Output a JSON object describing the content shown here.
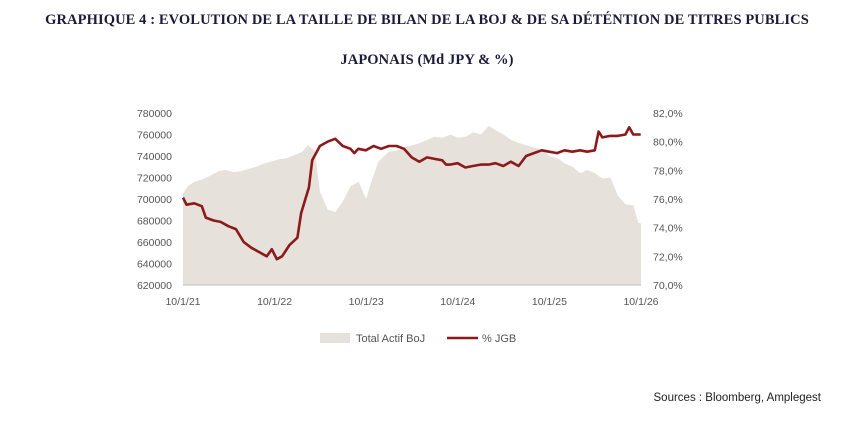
{
  "header": {
    "title_line1": "GRAPHIQUE 4 : EVOLUTION DE LA TAILLE DE BILAN DE LA BOJ & DE SA DÉTÉNTION DE TITRES PUBLICS",
    "title_line2": "JAPONAIS (Md JPY & %)"
  },
  "footer": {
    "sources": "Sources : Bloomberg, Amplegest"
  },
  "colors": {
    "area": "#e6e1db",
    "line": "#8b1a1a",
    "axis_text": "#555555",
    "axis_line": "#bdbdbd"
  },
  "chart_data": {
    "type": "area",
    "x_tick_labels": [
      "10/1/21",
      "10/1/22",
      "10/1/23",
      "10/1/24",
      "10/1/25",
      "10/1/26"
    ],
    "x_range": [
      "2021-10-01",
      "2026-10-01"
    ],
    "y_left": {
      "ylim": [
        620000,
        780000
      ],
      "tick_labels": [
        "620000",
        "640000",
        "660000",
        "680000",
        "700000",
        "720000",
        "740000",
        "760000",
        "780000"
      ]
    },
    "y_right": {
      "ylim": [
        70.0,
        82.0
      ],
      "tick_labels": [
        "70,0%",
        "72,0%",
        "74,0%",
        "76,0%",
        "78,0%",
        "80,0%",
        "82,0%"
      ]
    },
    "legend": {
      "placement": "bottom",
      "series_labels": [
        "Total Actif BoJ",
        "% JGB"
      ]
    },
    "series": [
      {
        "name": "Total Actif BoJ",
        "axis": "left",
        "type": "area",
        "points": [
          [
            "2021-10-01",
            705000
          ],
          [
            "2021-10-20",
            712000
          ],
          [
            "2021-11-15",
            716000
          ],
          [
            "2021-12-15",
            718000
          ],
          [
            "2022-01-20",
            722000
          ],
          [
            "2022-02-20",
            726000
          ],
          [
            "2022-03-20",
            727000
          ],
          [
            "2022-04-20",
            725000
          ],
          [
            "2022-05-20",
            726000
          ],
          [
            "2022-06-20",
            728000
          ],
          [
            "2022-07-20",
            730000
          ],
          [
            "2022-08-20",
            733000
          ],
          [
            "2022-09-20",
            735000
          ],
          [
            "2022-10-20",
            737000
          ],
          [
            "2022-11-20",
            738000
          ],
          [
            "2022-12-20",
            741000
          ],
          [
            "2023-01-20",
            744000
          ],
          [
            "2023-02-10",
            750000
          ],
          [
            "2023-03-10",
            745000
          ],
          [
            "2023-03-31",
            707000
          ],
          [
            "2023-05-01",
            690000
          ],
          [
            "2023-06-01",
            688000
          ],
          [
            "2023-07-01",
            698000
          ],
          [
            "2023-08-01",
            712000
          ],
          [
            "2023-09-01",
            716000
          ],
          [
            "2023-10-01",
            700000
          ],
          [
            "2023-10-20",
            715000
          ],
          [
            "2023-11-20",
            735000
          ],
          [
            "2023-12-31",
            744000
          ],
          [
            "2024-02-01",
            745000
          ],
          [
            "2024-03-01",
            748000
          ],
          [
            "2024-04-01",
            750000
          ],
          [
            "2024-05-01",
            752000
          ],
          [
            "2024-06-01",
            755000
          ],
          [
            "2024-07-01",
            758000
          ],
          [
            "2024-08-01",
            757000
          ],
          [
            "2024-09-01",
            760000
          ],
          [
            "2024-10-01",
            757000
          ],
          [
            "2024-11-01",
            758000
          ],
          [
            "2024-12-01",
            762000
          ],
          [
            "2025-01-01",
            760000
          ],
          [
            "2025-02-01",
            768000
          ],
          [
            "2025-03-01",
            764000
          ],
          [
            "2025-04-01",
            760000
          ],
          [
            "2025-05-01",
            755000
          ],
          [
            "2025-06-01",
            752000
          ],
          [
            "2025-07-01",
            750000
          ],
          [
            "2025-08-01",
            748000
          ],
          [
            "2025-09-01",
            746000
          ],
          [
            "2025-10-01",
            740000
          ],
          [
            "2025-11-01",
            738000
          ],
          [
            "2025-12-01",
            733000
          ],
          [
            "2026-01-01",
            730000
          ],
          [
            "2026-02-01",
            724000
          ],
          [
            "2026-03-01",
            727000
          ],
          [
            "2026-04-01",
            724000
          ],
          [
            "2026-05-01",
            719000
          ],
          [
            "2026-06-01",
            720000
          ],
          [
            "2026-07-01",
            703000
          ],
          [
            "2026-08-01",
            695000
          ],
          [
            "2026-09-01",
            694000
          ],
          [
            "2026-09-20",
            678000
          ],
          [
            "2026-10-01",
            677000
          ]
        ]
      },
      {
        "name": "% JGB",
        "axis": "right",
        "type": "line",
        "points": [
          [
            "2021-10-01",
            76.1
          ],
          [
            "2021-10-15",
            75.6
          ],
          [
            "2021-11-15",
            75.7
          ],
          [
            "2021-12-15",
            75.5
          ],
          [
            "2021-12-31",
            74.7
          ],
          [
            "2022-01-31",
            74.5
          ],
          [
            "2022-02-28",
            74.4
          ],
          [
            "2022-03-31",
            74.1
          ],
          [
            "2022-04-30",
            73.9
          ],
          [
            "2022-05-31",
            73.0
          ],
          [
            "2022-06-30",
            72.6
          ],
          [
            "2022-07-31",
            72.3
          ],
          [
            "2022-08-31",
            72.0
          ],
          [
            "2022-09-20",
            72.5
          ],
          [
            "2022-10-10",
            71.8
          ],
          [
            "2022-10-31",
            72.0
          ],
          [
            "2022-11-30",
            72.8
          ],
          [
            "2022-12-31",
            73.3
          ],
          [
            "2023-01-15",
            75.0
          ],
          [
            "2023-02-01",
            76.0
          ],
          [
            "2023-02-15",
            76.8
          ],
          [
            "2023-02-28",
            78.7
          ],
          [
            "2023-03-31",
            79.7
          ],
          [
            "2023-04-30",
            80.0
          ],
          [
            "2023-05-31",
            80.2
          ],
          [
            "2023-06-30",
            79.7
          ],
          [
            "2023-07-31",
            79.5
          ],
          [
            "2023-08-15",
            79.2
          ],
          [
            "2023-08-31",
            79.5
          ],
          [
            "2023-09-30",
            79.4
          ],
          [
            "2023-10-31",
            79.7
          ],
          [
            "2023-11-30",
            79.5
          ],
          [
            "2023-12-31",
            79.7
          ],
          [
            "2024-01-31",
            79.7
          ],
          [
            "2024-02-29",
            79.5
          ],
          [
            "2024-03-31",
            78.9
          ],
          [
            "2024-04-30",
            78.6
          ],
          [
            "2024-05-31",
            78.9
          ],
          [
            "2024-06-30",
            78.8
          ],
          [
            "2024-07-31",
            78.7
          ],
          [
            "2024-08-15",
            78.4
          ],
          [
            "2024-08-31",
            78.4
          ],
          [
            "2024-09-30",
            78.5
          ],
          [
            "2024-10-31",
            78.2
          ],
          [
            "2024-11-30",
            78.3
          ],
          [
            "2024-12-31",
            78.4
          ],
          [
            "2025-01-31",
            78.4
          ],
          [
            "2025-02-28",
            78.5
          ],
          [
            "2025-03-31",
            78.3
          ],
          [
            "2025-04-30",
            78.6
          ],
          [
            "2025-05-31",
            78.3
          ],
          [
            "2025-06-30",
            79.0
          ],
          [
            "2025-07-31",
            79.2
          ],
          [
            "2025-08-31",
            79.4
          ],
          [
            "2025-09-30",
            79.3
          ],
          [
            "2025-10-31",
            79.2
          ],
          [
            "2025-11-30",
            79.4
          ],
          [
            "2025-12-31",
            79.3
          ],
          [
            "2026-01-31",
            79.4
          ],
          [
            "2026-02-28",
            79.3
          ],
          [
            "2026-03-31",
            79.4
          ],
          [
            "2026-04-15",
            80.7
          ],
          [
            "2026-04-30",
            80.3
          ],
          [
            "2026-05-31",
            80.4
          ],
          [
            "2026-06-30",
            80.4
          ],
          [
            "2026-07-31",
            80.5
          ],
          [
            "2026-08-15",
            81.0
          ],
          [
            "2026-08-31",
            80.5
          ],
          [
            "2026-09-30",
            80.5
          ]
        ]
      }
    ]
  }
}
